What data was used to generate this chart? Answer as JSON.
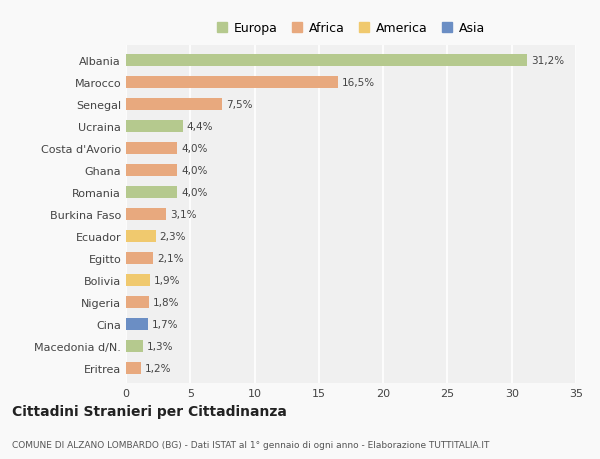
{
  "countries": [
    "Albania",
    "Marocco",
    "Senegal",
    "Ucraina",
    "Costa d'Avorio",
    "Ghana",
    "Romania",
    "Burkina Faso",
    "Ecuador",
    "Egitto",
    "Bolivia",
    "Nigeria",
    "Cina",
    "Macedonia d/N.",
    "Eritrea"
  ],
  "values": [
    31.2,
    16.5,
    7.5,
    4.4,
    4.0,
    4.0,
    4.0,
    3.1,
    2.3,
    2.1,
    1.9,
    1.8,
    1.7,
    1.3,
    1.2
  ],
  "labels": [
    "31,2%",
    "16,5%",
    "7,5%",
    "4,4%",
    "4,0%",
    "4,0%",
    "4,0%",
    "3,1%",
    "2,3%",
    "2,1%",
    "1,9%",
    "1,8%",
    "1,7%",
    "1,3%",
    "1,2%"
  ],
  "continents": [
    "Europa",
    "Africa",
    "Africa",
    "Europa",
    "Africa",
    "Africa",
    "Europa",
    "Africa",
    "America",
    "Africa",
    "America",
    "Africa",
    "Asia",
    "Europa",
    "Africa"
  ],
  "colors": {
    "Europa": "#b5c98e",
    "Africa": "#e8a97e",
    "America": "#f0c96e",
    "Asia": "#6b8ec4"
  },
  "legend_order": [
    "Europa",
    "Africa",
    "America",
    "Asia"
  ],
  "xlim": [
    0,
    35
  ],
  "xticks": [
    0,
    5,
    10,
    15,
    20,
    25,
    30,
    35
  ],
  "title": "Cittadini Stranieri per Cittadinanza",
  "subtitle": "COMUNE DI ALZANO LOMBARDO (BG) - Dati ISTAT al 1° gennaio di ogni anno - Elaborazione TUTTITALIA.IT",
  "bg_color": "#f9f9f9",
  "bar_height": 0.55,
  "grid_color": "#ffffff",
  "plot_bg": "#f0f0f0"
}
